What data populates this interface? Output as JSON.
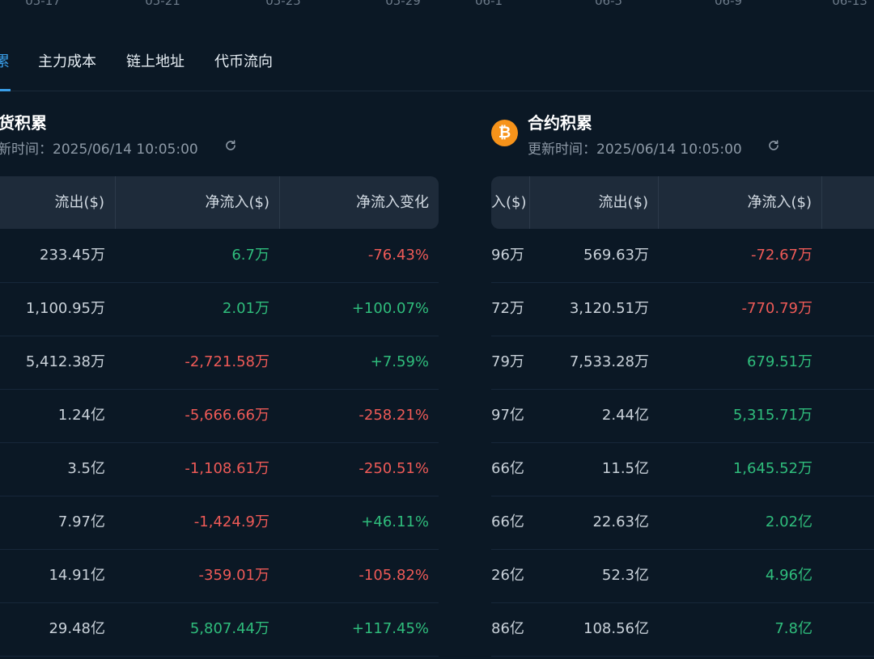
{
  "axis_dates": [
    "05-17",
    "05-21",
    "05-25",
    "05-29",
    "06-1",
    "06-5",
    "06-9",
    "06-13"
  ],
  "tabs": [
    "累",
    "主力成本",
    "链上地址",
    "代币流向"
  ],
  "spot": {
    "title": "货积累",
    "update_text": "新时间：2025/06/14 10:05:00",
    "headers": [
      "流出($)",
      "净流入($)",
      "净流入变化"
    ],
    "rows": [
      {
        "outflow": "233.45万",
        "net": "6.7万",
        "net_dir": "up",
        "change": "-76.43%",
        "change_dir": "down"
      },
      {
        "outflow": "1,100.95万",
        "net": "2.01万",
        "net_dir": "up",
        "change": "+100.07%",
        "change_dir": "up"
      },
      {
        "outflow": "5,412.38万",
        "net": "-2,721.58万",
        "net_dir": "down",
        "change": "+7.59%",
        "change_dir": "up"
      },
      {
        "outflow": "1.24亿",
        "net": "-5,666.66万",
        "net_dir": "down",
        "change": "-258.21%",
        "change_dir": "down"
      },
      {
        "outflow": "3.5亿",
        "net": "-1,108.61万",
        "net_dir": "down",
        "change": "-250.51%",
        "change_dir": "down"
      },
      {
        "outflow": "7.97亿",
        "net": "-1,424.9万",
        "net_dir": "down",
        "change": "+46.11%",
        "change_dir": "up"
      },
      {
        "outflow": "14.91亿",
        "net": "-359.01万",
        "net_dir": "down",
        "change": "-105.82%",
        "change_dir": "down"
      },
      {
        "outflow": "29.48亿",
        "net": "5,807.44万",
        "net_dir": "up",
        "change": "+117.45%",
        "change_dir": "up"
      }
    ]
  },
  "contract": {
    "title": "合约积累",
    "icon_glyph": "₿",
    "update_text": "更新时间：2025/06/14 10:05:00",
    "headers": [
      "入($)",
      "流出($)",
      "净流入($)"
    ],
    "rows": [
      {
        "inflow": "96万",
        "outflow": "569.63万",
        "net": "-72.67万",
        "net_dir": "down"
      },
      {
        "inflow": "72万",
        "outflow": "3,120.51万",
        "net": "-770.79万",
        "net_dir": "down"
      },
      {
        "inflow": "79万",
        "outflow": "7,533.28万",
        "net": "679.51万",
        "net_dir": "up"
      },
      {
        "inflow": "97亿",
        "outflow": "2.44亿",
        "net": "5,315.71万",
        "net_dir": "up"
      },
      {
        "inflow": "66亿",
        "outflow": "11.5亿",
        "net": "1,645.52万",
        "net_dir": "up"
      },
      {
        "inflow": "66亿",
        "outflow": "22.63亿",
        "net": "2.02亿",
        "net_dir": "up"
      },
      {
        "inflow": "26亿",
        "outflow": "52.3亿",
        "net": "4.96亿",
        "net_dir": "up"
      },
      {
        "inflow": "86亿",
        "outflow": "108.56亿",
        "net": "7.8亿",
        "net_dir": "up"
      }
    ]
  }
}
